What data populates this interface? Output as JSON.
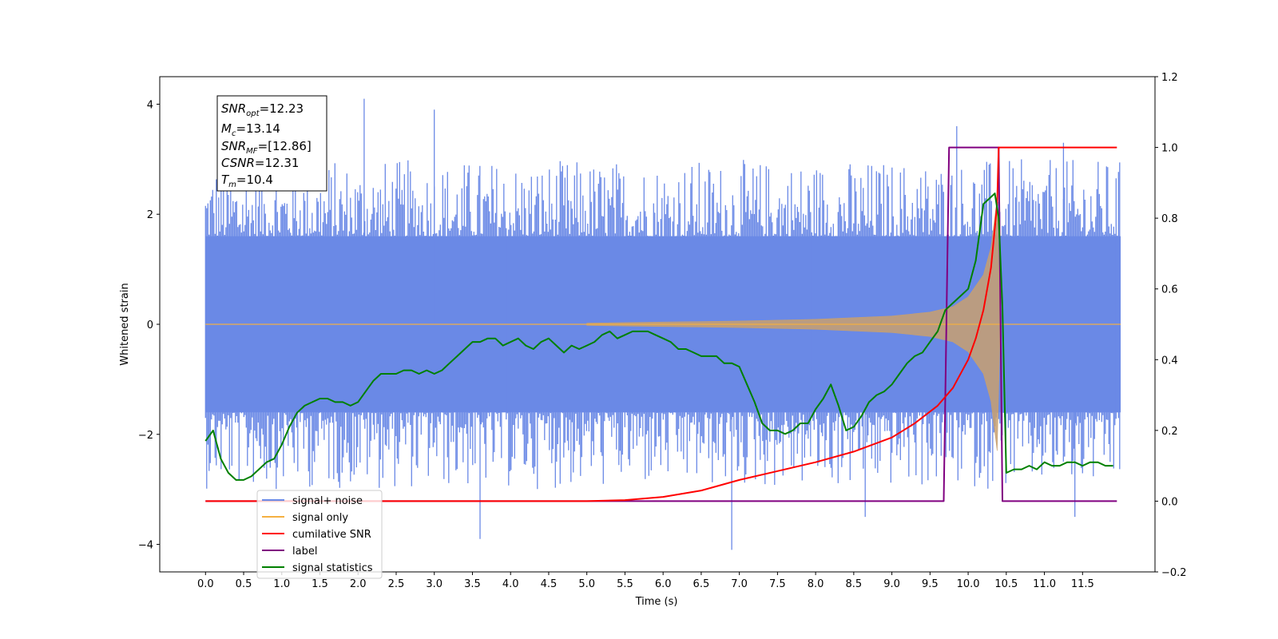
{
  "chart_data": {
    "type": "line",
    "title": "",
    "xlabel": "Time (s)",
    "ylabel": "Whitened strain",
    "xlim": [
      -0.6,
      12.45
    ],
    "ylim_left": [
      -4.5,
      4.5
    ],
    "ylim_right": [
      -0.2,
      1.2
    ],
    "x_ticks": [
      0.0,
      0.5,
      1.0,
      1.5,
      2.0,
      2.5,
      3.0,
      3.5,
      4.0,
      4.5,
      5.0,
      5.5,
      6.0,
      6.5,
      7.0,
      7.5,
      8.0,
      8.5,
      9.0,
      9.5,
      10.0,
      10.5,
      11.0,
      11.5
    ],
    "x_tick_labels": [
      "0.0",
      "0.5",
      "1.0",
      "1.5",
      "2.0",
      "2.5",
      "3.0",
      "3.5",
      "4.0",
      "4.5",
      "5.0",
      "5.5",
      "6.0",
      "6.5",
      "7.0",
      "7.5",
      "8.0",
      "8.5",
      "9.0",
      "9.5",
      "10.0",
      "10.5",
      "11.0",
      "11.5"
    ],
    "y_left_ticks": [
      -4,
      -2,
      0,
      2,
      4
    ],
    "y_left_tick_labels": [
      "−4",
      "−2",
      "0",
      "2",
      "4"
    ],
    "y_right_ticks": [
      -0.2,
      0.0,
      0.2,
      0.4,
      0.6,
      0.8,
      1.0,
      1.2
    ],
    "y_right_tick_labels": [
      "−0.2",
      "0.0",
      "0.2",
      "0.4",
      "0.6",
      "0.8",
      "1.0",
      "1.2"
    ],
    "grid": false,
    "legend_position": "lower-left",
    "colors": {
      "noise": "#6a89e6",
      "signal": "#f5b041",
      "cumulative": "#ff0000",
      "label": "#800080",
      "statistics": "#008000"
    },
    "stats_box": {
      "snr_opt_main": "SNR",
      "snr_opt_sub": "opt",
      "snr_opt_value": "=12.23",
      "mc_main": "M",
      "mc_sub": "c",
      "mc_value": "=13.14",
      "snr_mf_main": "SNR",
      "snr_mf_sub": "MF",
      "snr_mf_value": "=[12.86]",
      "csnr_main": "CSNR",
      "csnr_value": "=12.31",
      "tm_main": "T",
      "tm_sub": "m",
      "tm_value": "=10.4"
    },
    "series": [
      {
        "name": "signal+ noise",
        "axis": "left",
        "x_range": [
          0.0,
          12.0
        ],
        "envelope_upper": 1.6,
        "envelope_lower": -1.6,
        "peaks": [
          {
            "x": 2.08,
            "y": 4.1
          },
          {
            "x": 3.0,
            "y": 3.9
          },
          {
            "x": 9.85,
            "y": 3.6
          },
          {
            "x": 11.25,
            "y": 3.3
          },
          {
            "x": 3.6,
            "y": -3.9
          },
          {
            "x": 6.9,
            "y": -4.1
          },
          {
            "x": 8.65,
            "y": -3.5
          },
          {
            "x": 11.4,
            "y": -3.5
          }
        ]
      },
      {
        "name": "signal only",
        "axis": "left",
        "chirp_start_x": 5.0,
        "merger_x": 10.4,
        "peak_amplitude": 2.3,
        "points": [
          {
            "x": 5.0,
            "y": 0.02
          },
          {
            "x": 6.0,
            "y": 0.04
          },
          {
            "x": 7.0,
            "y": 0.06
          },
          {
            "x": 8.0,
            "y": 0.09
          },
          {
            "x": 9.0,
            "y": 0.15
          },
          {
            "x": 9.5,
            "y": 0.22
          },
          {
            "x": 9.8,
            "y": 0.32
          },
          {
            "x": 10.0,
            "y": 0.5
          },
          {
            "x": 10.2,
            "y": 0.9
          },
          {
            "x": 10.3,
            "y": 1.4
          },
          {
            "x": 10.38,
            "y": 2.3
          },
          {
            "x": 10.42,
            "y": 0.05
          }
        ]
      },
      {
        "name": "cumilative SNR",
        "axis": "right",
        "x": [
          0.0,
          5.0,
          5.5,
          6.0,
          6.5,
          7.0,
          7.5,
          8.0,
          8.5,
          9.0,
          9.3,
          9.6,
          9.8,
          10.0,
          10.1,
          10.2,
          10.3,
          10.38,
          10.4,
          10.45,
          11.0,
          11.5,
          11.95
        ],
        "y": [
          0.0,
          0.0,
          0.003,
          0.012,
          0.03,
          0.06,
          0.085,
          0.11,
          0.14,
          0.18,
          0.22,
          0.27,
          0.32,
          0.4,
          0.46,
          0.54,
          0.66,
          0.84,
          1.0,
          1.0,
          1.0,
          1.0,
          1.0
        ]
      },
      {
        "name": "label",
        "axis": "right",
        "x": [
          0.0,
          9.68,
          9.75,
          10.4,
          10.45,
          11.95
        ],
        "y": [
          0.0,
          0.0,
          1.0,
          1.0,
          0.0,
          0.0
        ]
      },
      {
        "name": "signal statistics",
        "axis": "right",
        "x": [
          0.0,
          0.1,
          0.2,
          0.3,
          0.4,
          0.5,
          0.6,
          0.7,
          0.8,
          0.9,
          1.0,
          1.1,
          1.2,
          1.3,
          1.4,
          1.5,
          1.6,
          1.7,
          1.8,
          1.9,
          2.0,
          2.1,
          2.2,
          2.3,
          2.4,
          2.5,
          2.6,
          2.7,
          2.8,
          2.9,
          3.0,
          3.1,
          3.2,
          3.3,
          3.4,
          3.5,
          3.6,
          3.7,
          3.8,
          3.9,
          4.0,
          4.1,
          4.2,
          4.3,
          4.4,
          4.5,
          4.6,
          4.7,
          4.8,
          4.9,
          5.0,
          5.1,
          5.2,
          5.3,
          5.4,
          5.5,
          5.6,
          5.7,
          5.8,
          5.9,
          6.0,
          6.1,
          6.2,
          6.3,
          6.4,
          6.5,
          6.6,
          6.7,
          6.8,
          6.9,
          7.0,
          7.1,
          7.2,
          7.3,
          7.4,
          7.5,
          7.6,
          7.7,
          7.8,
          7.9,
          8.0,
          8.1,
          8.2,
          8.3,
          8.4,
          8.5,
          8.6,
          8.7,
          8.8,
          8.9,
          9.0,
          9.1,
          9.2,
          9.3,
          9.4,
          9.5,
          9.6,
          9.7,
          9.8,
          9.9,
          10.0,
          10.1,
          10.2,
          10.3,
          10.35,
          10.4,
          10.45,
          10.5,
          10.6,
          10.7,
          10.8,
          10.9,
          11.0,
          11.1,
          11.2,
          11.3,
          11.4,
          11.5,
          11.6,
          11.7,
          11.8,
          11.9
        ],
        "y": [
          0.17,
          0.2,
          0.12,
          0.08,
          0.06,
          0.06,
          0.07,
          0.09,
          0.11,
          0.12,
          0.16,
          0.21,
          0.25,
          0.27,
          0.28,
          0.29,
          0.29,
          0.28,
          0.28,
          0.27,
          0.28,
          0.31,
          0.34,
          0.36,
          0.36,
          0.36,
          0.37,
          0.37,
          0.36,
          0.37,
          0.36,
          0.37,
          0.39,
          0.41,
          0.43,
          0.45,
          0.45,
          0.46,
          0.46,
          0.44,
          0.45,
          0.46,
          0.44,
          0.43,
          0.45,
          0.46,
          0.44,
          0.42,
          0.44,
          0.43,
          0.44,
          0.45,
          0.47,
          0.48,
          0.46,
          0.47,
          0.48,
          0.48,
          0.48,
          0.47,
          0.46,
          0.45,
          0.43,
          0.43,
          0.42,
          0.41,
          0.41,
          0.41,
          0.39,
          0.39,
          0.38,
          0.33,
          0.28,
          0.22,
          0.2,
          0.2,
          0.19,
          0.2,
          0.22,
          0.22,
          0.26,
          0.29,
          0.33,
          0.27,
          0.2,
          0.21,
          0.24,
          0.28,
          0.3,
          0.31,
          0.33,
          0.36,
          0.39,
          0.41,
          0.42,
          0.45,
          0.48,
          0.54,
          0.56,
          0.58,
          0.6,
          0.68,
          0.84,
          0.86,
          0.87,
          0.8,
          0.55,
          0.08,
          0.09,
          0.09,
          0.1,
          0.09,
          0.11,
          0.1,
          0.1,
          0.11,
          0.11,
          0.1,
          0.11,
          0.11,
          0.1,
          0.1
        ]
      }
    ],
    "legend": [
      "signal+ noise",
      "signal only",
      "cumilative SNR",
      "label",
      "signal statistics"
    ]
  }
}
